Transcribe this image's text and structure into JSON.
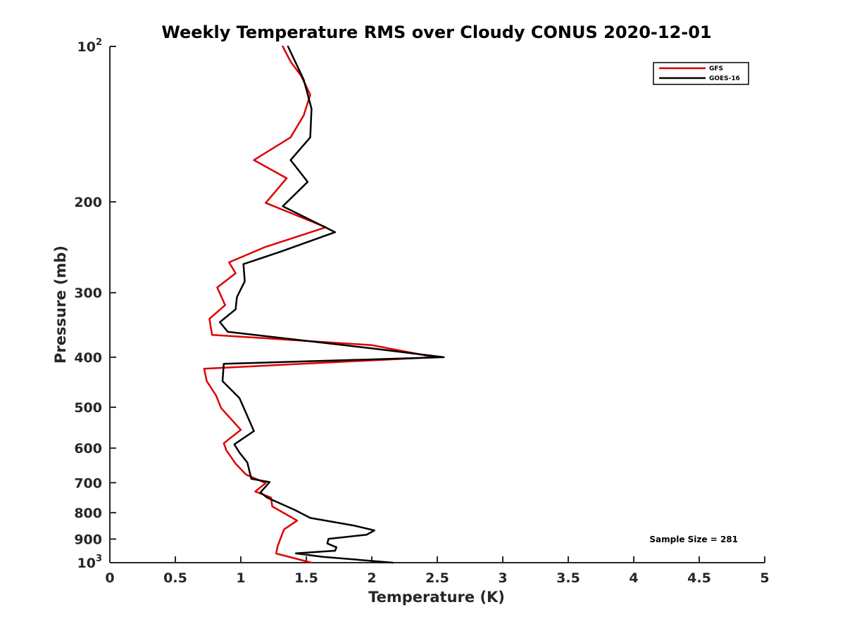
{
  "chart_data": {
    "type": "line",
    "title": "Weekly Temperature RMS over Cloudy CONUS 2020-12-01",
    "xlabel": "Temperature (K)",
    "ylabel": "Pressure (mb)",
    "xlim": [
      0,
      5
    ],
    "ylim": [
      100,
      1000
    ],
    "y_scale": "log",
    "y_reversed": true,
    "x_ticks": [
      0,
      0.5,
      1,
      1.5,
      2,
      2.5,
      3,
      3.5,
      4,
      4.5,
      5
    ],
    "x_tick_labels": [
      "0",
      "0.5",
      "1",
      "1.5",
      "2",
      "2.5",
      "3",
      "3.5",
      "4",
      "4.5",
      "5"
    ],
    "y_ticks": [
      {
        "value": 100,
        "base": "10",
        "exp": "2"
      },
      {
        "value": 200,
        "label": "200"
      },
      {
        "value": 300,
        "label": "300"
      },
      {
        "value": 400,
        "label": "400"
      },
      {
        "value": 500,
        "label": "500"
      },
      {
        "value": 600,
        "label": "600"
      },
      {
        "value": 700,
        "label": "700"
      },
      {
        "value": 800,
        "label": "800"
      },
      {
        "value": 900,
        "label": "900"
      },
      {
        "value": 1000,
        "base": "10",
        "exp": "3"
      }
    ],
    "legend_position": "top-right",
    "grid": false,
    "annotation": "Sample Size = 281",
    "series": [
      {
        "name": "GFS",
        "color": "#dd0000",
        "points": [
          [
            1.32,
            100
          ],
          [
            1.38,
            107
          ],
          [
            1.46,
            114
          ],
          [
            1.53,
            124
          ],
          [
            1.48,
            136
          ],
          [
            1.38,
            150
          ],
          [
            1.1,
            166
          ],
          [
            1.35,
            180
          ],
          [
            1.19,
            201
          ],
          [
            1.65,
            224
          ],
          [
            1.18,
            245
          ],
          [
            0.91,
            262
          ],
          [
            0.96,
            275
          ],
          [
            0.82,
            293
          ],
          [
            0.88,
            317
          ],
          [
            0.76,
            337
          ],
          [
            0.78,
            362
          ],
          [
            2.0,
            379
          ],
          [
            2.48,
            400
          ],
          [
            0.72,
            421
          ],
          [
            0.74,
            445
          ],
          [
            0.81,
            474
          ],
          [
            0.85,
            502
          ],
          [
            1.0,
            553
          ],
          [
            0.87,
            587
          ],
          [
            0.89,
            606
          ],
          [
            0.96,
            643
          ],
          [
            1.04,
            675
          ],
          [
            1.19,
            701
          ],
          [
            1.11,
            728
          ],
          [
            1.23,
            748
          ],
          [
            1.24,
            778
          ],
          [
            1.43,
            829
          ],
          [
            1.33,
            862
          ],
          [
            1.3,
            902
          ],
          [
            1.28,
            931
          ],
          [
            1.27,
            960
          ],
          [
            1.54,
            1000
          ]
        ]
      },
      {
        "name": "GOES-16",
        "color": "#000000",
        "points": [
          [
            1.36,
            100
          ],
          [
            1.48,
            116
          ],
          [
            1.54,
            132
          ],
          [
            1.53,
            150
          ],
          [
            1.38,
            166
          ],
          [
            1.51,
            183
          ],
          [
            1.32,
            204
          ],
          [
            1.72,
            229
          ],
          [
            1.3,
            250
          ],
          [
            1.02,
            264
          ],
          [
            1.03,
            285
          ],
          [
            0.97,
            306
          ],
          [
            0.96,
            323
          ],
          [
            0.84,
            342
          ],
          [
            0.9,
            357
          ],
          [
            2.02,
            385
          ],
          [
            2.55,
            400
          ],
          [
            0.87,
            412
          ],
          [
            0.86,
            445
          ],
          [
            0.99,
            480
          ],
          [
            1.1,
            556
          ],
          [
            0.95,
            590
          ],
          [
            0.99,
            612
          ],
          [
            1.05,
            640
          ],
          [
            1.08,
            688
          ],
          [
            1.22,
            698
          ],
          [
            1.15,
            731
          ],
          [
            1.2,
            748
          ],
          [
            1.41,
            790
          ],
          [
            1.53,
            819
          ],
          [
            1.86,
            847
          ],
          [
            2.02,
            866
          ],
          [
            1.96,
            883
          ],
          [
            1.67,
            899
          ],
          [
            1.66,
            918
          ],
          [
            1.73,
            934
          ],
          [
            1.72,
            948
          ],
          [
            1.42,
            959
          ],
          [
            1.62,
            974
          ],
          [
            2.16,
            1000
          ]
        ]
      }
    ]
  }
}
